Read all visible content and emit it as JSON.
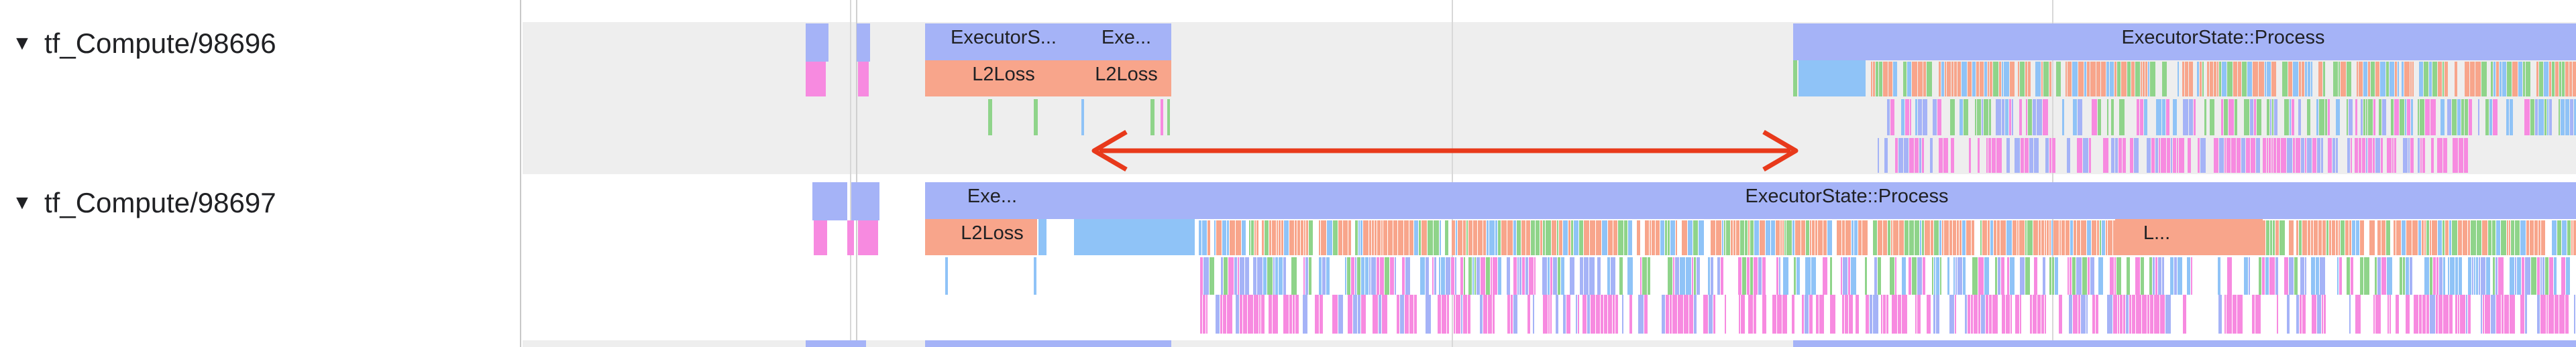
{
  "tracks": [
    {
      "label": "tf_Compute/98696",
      "chevron": "▼"
    },
    {
      "label": "tf_Compute/98697",
      "chevron": "▼"
    }
  ],
  "slices": {
    "t1_executor_short": "ExecutorS...",
    "t1_exe_short": "Exe...",
    "t1_l2loss_a": "L2Loss",
    "t1_l2loss_b": "L2Loss",
    "t1_executor_process": "ExecutorState::Process",
    "t2_exe_short": "Exe...",
    "t2_l2loss": "L2Loss",
    "t2_executor_process": "ExecutorState::Process",
    "t2_l_short": "L..."
  },
  "colors": {
    "executor": "#a5b3f7",
    "l2loss": "#f8a58b",
    "blue_op": "#8fc3f7",
    "pink_op": "#f78ae0",
    "green_op": "#8fd48a",
    "track1_bg": "#eeeeee",
    "track2_bg": "#ffffff",
    "gridline": "#d8d8d8",
    "arrow": "#e8391b"
  },
  "annotation": {
    "type": "double-headed-arrow",
    "color": "#e8391b"
  }
}
